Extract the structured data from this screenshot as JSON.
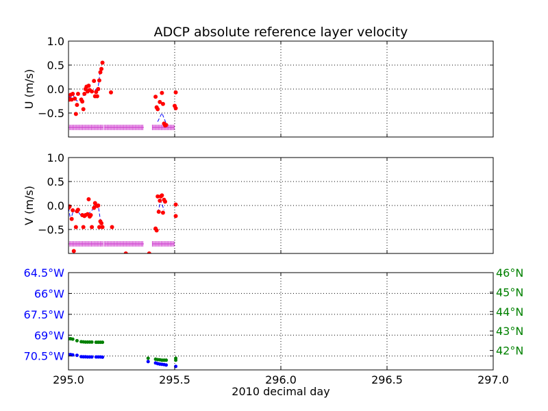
{
  "chart_data": {
    "title": "ADCP absolute reference layer velocity",
    "xlabel": "2010 decimal day",
    "xlim": [
      295.0,
      297.0
    ],
    "xticks": [
      "295.0",
      "295.5",
      "296.0",
      "296.5",
      "297.0"
    ],
    "xtick_values": [
      295.0,
      295.5,
      296.0,
      296.5,
      297.0
    ],
    "grid": true,
    "colors": {
      "points": "#ff0000",
      "line": "#0000ff",
      "flags": "#cc33cc",
      "lon": "#0000ff",
      "lat": "#008000"
    },
    "panels": [
      {
        "ylabel": "U (m/s)",
        "ylim": [
          -1.0,
          1.0
        ],
        "yticks": [
          "1.0",
          "0.5",
          "0.0",
          "−0.5"
        ],
        "ytick_values": [
          1.0,
          0.5,
          0.0,
          -0.5
        ],
        "points": [
          [
            295.0,
            -0.2
          ],
          [
            295.005,
            -0.22
          ],
          [
            295.01,
            -0.12
          ],
          [
            295.015,
            -0.22
          ],
          [
            295.02,
            -0.1
          ],
          [
            295.03,
            -0.2
          ],
          [
            295.035,
            -0.52
          ],
          [
            295.04,
            -0.33
          ],
          [
            295.045,
            -0.1
          ],
          [
            295.06,
            -0.22
          ],
          [
            295.065,
            -0.26
          ],
          [
            295.07,
            -0.42
          ],
          [
            295.075,
            -0.1
          ],
          [
            295.08,
            0.0
          ],
          [
            295.085,
            0.05
          ],
          [
            295.09,
            -0.05
          ],
          [
            295.095,
            0.07
          ],
          [
            295.1,
            -0.02
          ],
          [
            295.11,
            -0.05
          ],
          [
            295.12,
            0.17
          ],
          [
            295.125,
            -0.15
          ],
          [
            295.13,
            -0.06
          ],
          [
            295.135,
            -0.15
          ],
          [
            295.14,
            0.0
          ],
          [
            295.145,
            0.18
          ],
          [
            295.15,
            0.35
          ],
          [
            295.155,
            0.42
          ],
          [
            295.16,
            0.55
          ],
          [
            295.2,
            -0.07
          ],
          [
            295.41,
            -0.16
          ],
          [
            295.415,
            -0.38
          ],
          [
            295.42,
            -0.42
          ],
          [
            295.43,
            -0.27
          ],
          [
            295.44,
            -0.08
          ],
          [
            295.445,
            -0.31
          ],
          [
            295.45,
            -0.72
          ],
          [
            295.455,
            -0.76
          ],
          [
            295.46,
            -0.75
          ],
          [
            295.5,
            -0.35
          ],
          [
            295.505,
            -0.4
          ],
          [
            295.505,
            -0.07
          ]
        ],
        "line": [
          [
            295.0,
            -0.15
          ],
          [
            295.01,
            -0.18
          ],
          [
            295.02,
            -0.12
          ],
          [
            295.04,
            -0.25
          ],
          [
            295.06,
            -0.2
          ],
          [
            295.08,
            -0.05
          ],
          [
            295.1,
            0.0
          ],
          [
            295.12,
            -0.05
          ],
          [
            295.14,
            0.05
          ],
          [
            295.15,
            0.4
          ],
          [
            295.16,
            0.45
          ]
        ],
        "line2": [
          [
            295.42,
            -0.68
          ],
          [
            295.44,
            -0.5
          ],
          [
            295.46,
            -0.72
          ]
        ],
        "flag_y": -0.8,
        "flag_segments": [
          [
            295.0,
            295.165
          ],
          [
            295.17,
            295.355
          ],
          [
            295.395,
            295.5
          ]
        ]
      },
      {
        "ylabel": "V (m/s)",
        "ylim": [
          -1.0,
          1.0
        ],
        "yticks": [
          "1.0",
          "0.5",
          "0.0",
          "−0.5"
        ],
        "ytick_values": [
          1.0,
          0.5,
          0.0,
          -0.5
        ],
        "points": [
          [
            295.0,
            -0.05
          ],
          [
            295.005,
            -0.02
          ],
          [
            295.015,
            -0.28
          ],
          [
            295.02,
            -0.1
          ],
          [
            295.025,
            -0.95
          ],
          [
            295.035,
            -0.45
          ],
          [
            295.04,
            -0.12
          ],
          [
            295.045,
            -0.09
          ],
          [
            295.065,
            -0.2
          ],
          [
            295.07,
            -0.45
          ],
          [
            295.075,
            -0.22
          ],
          [
            295.08,
            -0.2
          ],
          [
            295.09,
            -0.18
          ],
          [
            295.095,
            0.13
          ],
          [
            295.1,
            -0.23
          ],
          [
            295.105,
            -0.2
          ],
          [
            295.11,
            -0.45
          ],
          [
            295.12,
            -0.05
          ],
          [
            295.125,
            0.05
          ],
          [
            295.13,
            0.0
          ],
          [
            295.135,
            -0.01
          ],
          [
            295.14,
            0.0
          ],
          [
            295.145,
            -0.45
          ],
          [
            295.15,
            -0.33
          ],
          [
            295.155,
            -0.37
          ],
          [
            295.16,
            -0.45
          ],
          [
            295.205,
            -0.45
          ],
          [
            295.27,
            -1.0
          ],
          [
            295.38,
            -1.0
          ],
          [
            295.41,
            -0.48
          ],
          [
            295.415,
            -0.52
          ],
          [
            295.42,
            0.19
          ],
          [
            295.425,
            -0.13
          ],
          [
            295.43,
            0.1
          ],
          [
            295.435,
            0.19
          ],
          [
            295.44,
            0.21
          ],
          [
            295.445,
            -0.15
          ],
          [
            295.45,
            0.12
          ],
          [
            295.455,
            0.08
          ],
          [
            295.505,
            0.02
          ],
          [
            295.505,
            -0.22
          ]
        ],
        "line": [
          [
            295.0,
            -0.05
          ],
          [
            295.01,
            -0.3
          ],
          [
            295.02,
            -0.15
          ],
          [
            295.04,
            -0.1
          ],
          [
            295.06,
            -0.22
          ],
          [
            295.08,
            -0.2
          ],
          [
            295.1,
            -0.15
          ],
          [
            295.12,
            -0.05
          ],
          [
            295.14,
            0.0
          ],
          [
            295.15,
            -0.3
          ],
          [
            295.16,
            -0.4
          ]
        ],
        "line2": [
          [
            295.42,
            -0.15
          ],
          [
            295.435,
            0.1
          ],
          [
            295.45,
            -0.1
          ]
        ],
        "flag_y": -0.8,
        "flag_segments": [
          [
            295.0,
            295.165
          ],
          [
            295.17,
            295.355
          ],
          [
            295.395,
            295.5
          ]
        ]
      },
      {
        "left_ylim": [
          -71.5,
          -64.5
        ],
        "left_yticks": [
          "64.5°W",
          "66°W",
          "67.5°W",
          "69°W",
          "70.5°W"
        ],
        "left_ytick_values": [
          -64.5,
          -66.0,
          -67.5,
          -69.0,
          -70.5
        ],
        "right_ylim": [
          41.0,
          46.0
        ],
        "right_yticks": [
          "46°N",
          "45°N",
          "44°N",
          "43°N",
          "42°N"
        ],
        "right_ytick_values": [
          46.0,
          45.0,
          44.0,
          43.0,
          42.0
        ],
        "lon_points": [
          [
            295.0,
            -70.4
          ],
          [
            295.01,
            -70.4
          ],
          [
            295.02,
            -70.42
          ],
          [
            295.04,
            -70.45
          ],
          [
            295.06,
            -70.55
          ],
          [
            295.07,
            -70.56
          ],
          [
            295.08,
            -70.56
          ],
          [
            295.09,
            -70.57
          ],
          [
            295.1,
            -70.57
          ],
          [
            295.11,
            -70.57
          ],
          [
            295.13,
            -70.57
          ],
          [
            295.14,
            -70.57
          ],
          [
            295.15,
            -70.57
          ],
          [
            295.16,
            -70.58
          ],
          [
            295.375,
            -70.9
          ],
          [
            295.41,
            -71.0
          ],
          [
            295.42,
            -71.05
          ],
          [
            295.43,
            -71.08
          ],
          [
            295.44,
            -71.1
          ],
          [
            295.45,
            -71.12
          ],
          [
            295.46,
            -71.15
          ],
          [
            295.505,
            -71.25
          ]
        ],
        "lat_points": [
          [
            295.0,
            42.6
          ],
          [
            295.01,
            42.6
          ],
          [
            295.02,
            42.58
          ],
          [
            295.04,
            42.5
          ],
          [
            295.06,
            42.45
          ],
          [
            295.07,
            42.44
          ],
          [
            295.08,
            42.43
          ],
          [
            295.09,
            42.43
          ],
          [
            295.1,
            42.43
          ],
          [
            295.11,
            42.43
          ],
          [
            295.13,
            42.42
          ],
          [
            295.14,
            42.42
          ],
          [
            295.15,
            42.42
          ],
          [
            295.16,
            42.42
          ],
          [
            295.375,
            41.6
          ],
          [
            295.41,
            41.55
          ],
          [
            295.42,
            41.53
          ],
          [
            295.43,
            41.52
          ],
          [
            295.44,
            41.5
          ],
          [
            295.45,
            41.5
          ],
          [
            295.46,
            41.5
          ],
          [
            295.505,
            41.5
          ],
          [
            295.505,
            41.6
          ]
        ]
      }
    ]
  }
}
